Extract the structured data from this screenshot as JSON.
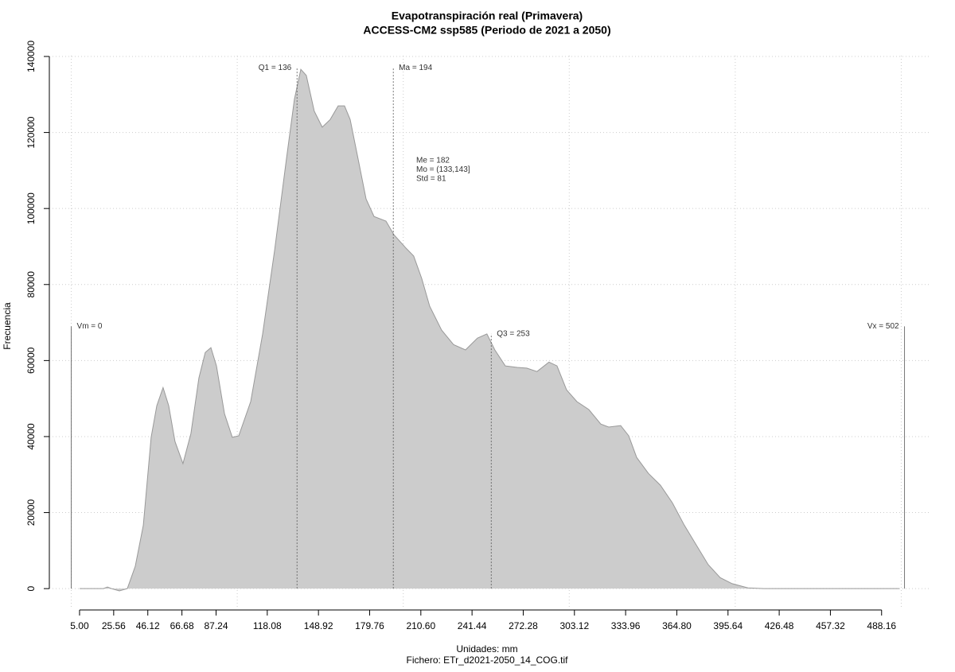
{
  "chart_data": {
    "type": "area",
    "title": "Evapotranspiración real (Primavera)",
    "subtitle": "ACCESS-CM2 ssp585 (Periodo de 2021 a 2050)",
    "x_label": "Unidades: mm",
    "caption": "Fichero: ETr_d2021-2050_14_COG.tif",
    "y_label": "Frecuencia",
    "x": [
      5,
      19.4,
      21.8,
      24.2,
      29,
      33.8,
      38.6,
      43.4,
      48.1,
      51.5,
      55.3,
      58.7,
      62.5,
      67.3,
      72.1,
      76.9,
      80.7,
      84.1,
      87.5,
      92.3,
      97,
      100.9,
      108.1,
      115.3,
      122.5,
      129.6,
      134.4,
      138.3,
      141.6,
      146.4,
      151.2,
      156,
      160.8,
      164.6,
      168,
      172.8,
      177.6,
      182.4,
      189.6,
      194.4,
      201.6,
      206.3,
      211.1,
      215.9,
      223.1,
      230.3,
      237.5,
      244.7,
      250.4,
      255.2,
      261.5,
      268.7,
      274.4,
      280.6,
      287.8,
      292.6,
      298.4,
      304.6,
      311.8,
      319,
      323.8,
      331,
      335.8,
      340.6,
      347.7,
      354.9,
      362.1,
      369.3,
      376.5,
      383.7,
      390.9,
      398.1,
      407.7,
      417.3,
      436.4,
      498.8
    ],
    "series": [
      {
        "name": "Frecuencia",
        "color": "#cccccc",
        "stroke": "#999999",
        "values": [
          0,
          0,
          400,
          0,
          -600,
          0,
          5900,
          16700,
          39800,
          48100,
          52900,
          48100,
          38700,
          32900,
          40800,
          55400,
          62100,
          63400,
          58600,
          46000,
          39800,
          40200,
          49200,
          67000,
          88900,
          113000,
          128700,
          136600,
          135000,
          125600,
          121400,
          123400,
          127000,
          127000,
          123400,
          113000,
          102500,
          97900,
          96700,
          93100,
          89600,
          87500,
          81600,
          74300,
          68000,
          64200,
          62800,
          65900,
          67000,
          62800,
          58600,
          58200,
          58000,
          57100,
          59600,
          58600,
          52300,
          49200,
          47100,
          43300,
          42500,
          42900,
          40200,
          34500,
          30300,
          27200,
          22600,
          16700,
          11500,
          6300,
          2900,
          1300,
          200,
          0,
          0,
          0
        ]
      }
    ],
    "xlim": [
      -13.2,
      518
    ],
    "ylim": [
      -5200,
      142300
    ],
    "xticks": [
      {
        "value": 5,
        "label": "5.00"
      },
      25.56,
      46.12,
      66.68,
      87.24,
      118.08,
      148.92,
      179.76,
      {
        "value": 210.6,
        "label": "210.60"
      },
      241.44,
      272.28,
      303.12,
      333.96,
      {
        "value": 364.8,
        "label": "364.80"
      },
      395.64,
      426.48,
      457.32,
      488.16
    ],
    "yticks": [
      0,
      20000,
      40000,
      60000,
      80000,
      100000,
      120000,
      140000
    ],
    "xgrid": [
      0,
      100,
      200,
      300,
      400,
      500
    ],
    "grid": true,
    "annotations": [
      {
        "label": "Vm = 0",
        "x": 0,
        "y": 69000,
        "side": "right",
        "dash": false
      },
      {
        "label": "Q1 = 136",
        "x": 136,
        "y": 137000,
        "side": "left",
        "dash": true
      },
      {
        "label": "Ma = 194",
        "x": 194,
        "y": 137000,
        "side": "right",
        "dash": true
      },
      {
        "label": "Q3 = 253",
        "x": 253,
        "y": 67000,
        "side": "right",
        "dash": true
      },
      {
        "label": "Vx = 502",
        "x": 502,
        "y": 69000,
        "side": "left",
        "dash": false
      }
    ],
    "stats": [
      "Me = 182",
      "Mo = (133,143]",
      "Std = 81"
    ]
  }
}
